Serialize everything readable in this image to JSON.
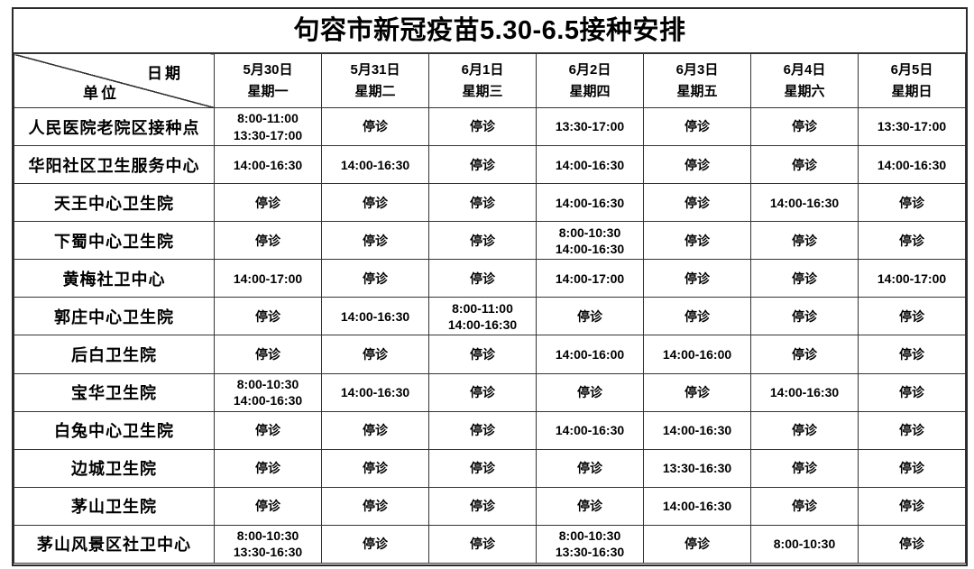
{
  "page": {
    "title": "句容市新冠疫苗5.30-6.5接种安排"
  },
  "corner": {
    "date_label": "日期",
    "unit_label": "单位"
  },
  "closed_label": "停诊",
  "columns": [
    {
      "date": "5月30日",
      "weekday": "星期一"
    },
    {
      "date": "5月31日",
      "weekday": "星期二"
    },
    {
      "date": "6月1日",
      "weekday": "星期三"
    },
    {
      "date": "6月2日",
      "weekday": "星期四"
    },
    {
      "date": "6月3日",
      "weekday": "星期五"
    },
    {
      "date": "6月4日",
      "weekday": "星期六"
    },
    {
      "date": "6月5日",
      "weekday": "星期日"
    }
  ],
  "rows": [
    {
      "unit": "人民医院老院区接种点",
      "cells": [
        "8:00-11:00\n13:30-17:00",
        "停诊",
        "停诊",
        "13:30-17:00",
        "停诊",
        "停诊",
        "13:30-17:00"
      ]
    },
    {
      "unit": "华阳社区卫生服务中心",
      "cells": [
        "14:00-16:30",
        "14:00-16:30",
        "停诊",
        "14:00-16:30",
        "停诊",
        "停诊",
        "14:00-16:30"
      ]
    },
    {
      "unit": "天王中心卫生院",
      "cells": [
        "停诊",
        "停诊",
        "停诊",
        "14:00-16:30",
        "停诊",
        "14:00-16:30",
        "停诊"
      ]
    },
    {
      "unit": "下蜀中心卫生院",
      "cells": [
        "停诊",
        "停诊",
        "停诊",
        "8:00-10:30\n14:00-16:30",
        "停诊",
        "停诊",
        "停诊"
      ]
    },
    {
      "unit": "黄梅社卫中心",
      "cells": [
        "14:00-17:00",
        "停诊",
        "停诊",
        "14:00-17:00",
        "停诊",
        "停诊",
        "14:00-17:00"
      ]
    },
    {
      "unit": "郭庄中心卫生院",
      "cells": [
        "停诊",
        "14:00-16:30",
        "8:00-11:00\n14:00-16:30",
        "停诊",
        "停诊",
        "停诊",
        "停诊"
      ]
    },
    {
      "unit": "后白卫生院",
      "cells": [
        "停诊",
        "停诊",
        "停诊",
        "14:00-16:00",
        "14:00-16:00",
        "停诊",
        "停诊"
      ]
    },
    {
      "unit": "宝华卫生院",
      "cells": [
        "8:00-10:30\n14:00-16:30",
        "14:00-16:30",
        "停诊",
        "停诊",
        "停诊",
        "14:00-16:30",
        "停诊"
      ]
    },
    {
      "unit": "白兔中心卫生院",
      "cells": [
        "停诊",
        "停诊",
        "停诊",
        "14:00-16:30",
        "14:00-16:30",
        "停诊",
        "停诊"
      ]
    },
    {
      "unit": "边城卫生院",
      "cells": [
        "停诊",
        "停诊",
        "停诊",
        "停诊",
        "13:30-16:30",
        "停诊",
        "停诊"
      ]
    },
    {
      "unit": "茅山卫生院",
      "cells": [
        "停诊",
        "停诊",
        "停诊",
        "停诊",
        "14:00-16:30",
        "停诊",
        "停诊"
      ]
    },
    {
      "unit": "茅山风景区社卫中心",
      "cells": [
        "8:00-10:30\n13:30-16:30",
        "停诊",
        "停诊",
        "8:00-10:30\n13:30-16:30",
        "停诊",
        "8:00-10:30",
        "停诊"
      ]
    }
  ],
  "colors": {
    "border": "#333333",
    "background": "#ffffff",
    "text": "#000000"
  }
}
